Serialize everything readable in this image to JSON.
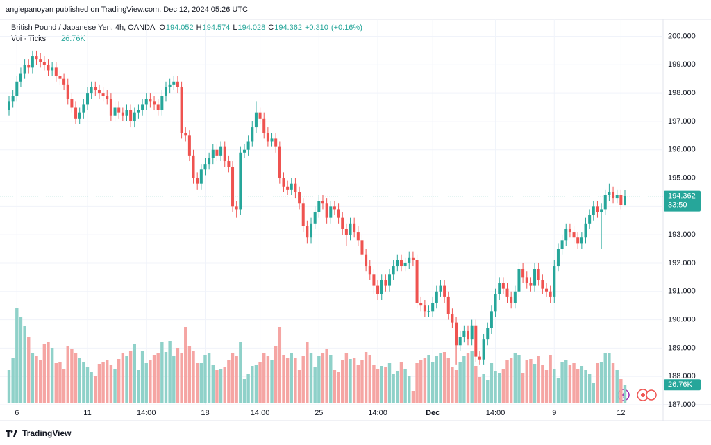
{
  "header": {
    "publisher": "angiepanoyan published on TradingView.com, Dec 12, 2024 05:26 UTC"
  },
  "footer": {
    "brand": "TradingView"
  },
  "chart_data": {
    "type": "candlestick",
    "title": "British Pound / Japanese Yen, 4h, OANDA",
    "ohlc_letters": {
      "open": "O",
      "high": "H",
      "low": "L",
      "close": "C"
    },
    "change_label": "+0.310",
    "change_pct_label": "(+0.16%)",
    "volume_title": "Vol · Ticks",
    "volume_label": "26.76K",
    "countdown": "33:50",
    "up_color": "#26a69a",
    "down_color": "#ef5350",
    "volume_up_color": "#8fd1c9",
    "volume_down_color": "#f5a5a3",
    "grid": true,
    "ylim": [
      187,
      200.6
    ],
    "yticks": [
      {
        "value": 187,
        "label": "187.000"
      },
      {
        "value": 188,
        "label": "188.000"
      },
      {
        "value": 189,
        "label": "189.000"
      },
      {
        "value": 190,
        "label": "190.000"
      },
      {
        "value": 191,
        "label": "191.000"
      },
      {
        "value": 192,
        "label": "192.000"
      },
      {
        "value": 193,
        "label": "193.000"
      },
      {
        "value": 194,
        "label": "194.000"
      },
      {
        "value": 195,
        "label": "195.000"
      },
      {
        "value": 196,
        "label": "196.000"
      },
      {
        "value": 197,
        "label": "197.000"
      },
      {
        "value": 198,
        "label": "198.000"
      },
      {
        "value": 199,
        "label": "199.000"
      },
      {
        "value": 200,
        "label": "200.000"
      }
    ],
    "volume_ylim": [
      0,
      140000
    ],
    "categories": [
      null,
      null,
      "6",
      null,
      null,
      null,
      null,
      null,
      null,
      null,
      null,
      null,
      null,
      null,
      null,
      null,
      null,
      null,
      null,
      null,
      "11",
      null,
      null,
      null,
      null,
      null,
      null,
      null,
      null,
      null,
      null,
      null,
      null,
      null,
      null,
      "14:00",
      null,
      null,
      null,
      null,
      null,
      null,
      null,
      null,
      null,
      null,
      null,
      null,
      null,
      null,
      "18",
      null,
      null,
      null,
      null,
      null,
      null,
      null,
      null,
      null,
      null,
      null,
      null,
      null,
      "14:00",
      null,
      null,
      null,
      null,
      null,
      null,
      null,
      null,
      null,
      null,
      null,
      null,
      null,
      null,
      "25",
      null,
      null,
      null,
      null,
      null,
      null,
      null,
      null,
      null,
      null,
      null,
      null,
      null,
      null,
      "14:00",
      null,
      null,
      null,
      null,
      null,
      null,
      null,
      null,
      null,
      null,
      null,
      null,
      null,
      "Dec",
      null,
      null,
      null,
      null,
      null,
      null,
      null,
      null,
      null,
      null,
      null,
      null,
      null,
      null,
      null,
      "14:00",
      null,
      null,
      null,
      null,
      null,
      null,
      null,
      null,
      null,
      null,
      null,
      null,
      null,
      null,
      "9",
      null,
      null,
      null,
      null,
      null,
      null,
      null,
      null,
      null,
      null,
      null,
      null,
      null,
      null,
      null,
      null,
      "12",
      null
    ],
    "open": [
      197.4,
      197.7,
      197.9,
      198.4,
      198.7,
      199.0,
      198.9,
      199.3,
      199.2,
      199.1,
      199.0,
      198.8,
      198.9,
      198.6,
      198.5,
      198.3,
      197.8,
      197.5,
      197.1,
      197.3,
      197.6,
      198.0,
      198.2,
      198.1,
      198.0,
      197.9,
      197.8,
      197.2,
      197.5,
      197.3,
      197.2,
      197.4,
      197.0,
      197.3,
      197.4,
      197.6,
      197.8,
      197.7,
      197.6,
      197.4,
      197.9,
      198.2,
      198.3,
      198.4,
      198.2,
      196.6,
      196.5,
      195.8,
      195.0,
      194.8,
      195.3,
      195.5,
      195.7,
      196.0,
      195.8,
      196.1,
      195.6,
      195.4,
      194.0,
      193.9,
      195.9,
      196.0,
      196.3,
      196.8,
      197.3,
      197.1,
      196.6,
      196.3,
      196.4,
      196.1,
      195.0,
      194.7,
      194.6,
      194.8,
      194.5,
      194.1,
      193.3,
      192.9,
      193.4,
      193.8,
      194.2,
      194.1,
      193.6,
      194.0,
      193.9,
      193.6,
      193.2,
      193.0,
      193.4,
      193.1,
      192.8,
      192.3,
      191.9,
      191.6,
      191.2,
      190.9,
      191.4,
      191.2,
      191.6,
      191.9,
      192.1,
      191.9,
      192.0,
      192.2,
      192.1,
      190.6,
      190.5,
      190.3,
      190.3,
      190.6,
      191.0,
      191.2,
      190.8,
      190.2,
      189.9,
      189.1,
      189.4,
      189.6,
      189.3,
      189.8,
      188.7,
      188.6,
      189.3,
      189.7,
      190.3,
      190.9,
      191.3,
      191.1,
      190.8,
      190.6,
      191.0,
      191.8,
      191.5,
      191.3,
      191.2,
      191.8,
      191.4,
      191.1,
      191.0,
      190.8,
      191.9,
      192.5,
      192.8,
      193.2,
      193.1,
      192.9,
      192.7,
      192.9,
      193.4,
      193.7,
      194.0,
      193.8,
      193.9,
      194.4,
      194.5,
      194.3,
      194.4,
      194.052
    ],
    "high": [
      197.9,
      198.1,
      198.6,
      198.9,
      199.2,
      199.2,
      199.5,
      199.5,
      199.4,
      199.3,
      199.2,
      199.1,
      199.1,
      198.8,
      198.7,
      198.5,
      198.0,
      197.7,
      197.5,
      197.8,
      198.2,
      198.4,
      198.4,
      198.3,
      198.2,
      198.1,
      198.0,
      197.7,
      197.7,
      197.5,
      197.6,
      197.6,
      197.5,
      197.6,
      197.8,
      198.0,
      198.0,
      197.9,
      197.8,
      198.1,
      198.4,
      198.5,
      198.6,
      198.6,
      198.4,
      196.8,
      196.7,
      196.0,
      195.2,
      195.5,
      195.7,
      195.9,
      196.2,
      196.2,
      196.3,
      196.3,
      195.8,
      195.6,
      194.2,
      196.1,
      196.2,
      196.5,
      197.0,
      197.7,
      197.5,
      197.3,
      196.8,
      196.6,
      196.6,
      196.3,
      195.2,
      194.9,
      195.0,
      195.0,
      194.7,
      194.3,
      193.5,
      193.6,
      194.0,
      194.4,
      194.4,
      194.3,
      194.2,
      194.2,
      194.1,
      193.8,
      193.4,
      193.6,
      193.6,
      193.3,
      193.0,
      192.5,
      192.1,
      191.8,
      191.4,
      191.6,
      191.6,
      191.8,
      192.1,
      192.3,
      192.3,
      192.2,
      192.4,
      192.4,
      192.3,
      190.8,
      190.7,
      190.5,
      190.8,
      191.2,
      191.4,
      191.4,
      191.0,
      190.4,
      190.1,
      189.6,
      189.8,
      189.8,
      190.0,
      190.0,
      188.9,
      189.5,
      189.9,
      190.5,
      191.1,
      191.5,
      191.5,
      191.3,
      191.0,
      191.2,
      192.0,
      192.0,
      191.7,
      191.5,
      192.0,
      192.0,
      191.6,
      191.3,
      191.2,
      192.1,
      192.7,
      193.0,
      193.4,
      193.4,
      193.3,
      193.1,
      193.1,
      193.6,
      193.9,
      194.2,
      194.2,
      194.1,
      194.6,
      194.8,
      194.7,
      194.6,
      194.6,
      194.574
    ],
    "low": [
      197.2,
      197.5,
      197.7,
      198.2,
      198.5,
      198.7,
      198.7,
      199.0,
      198.9,
      198.8,
      198.6,
      198.6,
      198.4,
      198.3,
      198.1,
      197.6,
      197.3,
      196.9,
      196.9,
      197.1,
      197.4,
      197.8,
      197.9,
      197.8,
      197.7,
      197.6,
      197.0,
      197.0,
      197.1,
      197.0,
      197.0,
      196.8,
      196.8,
      197.1,
      197.2,
      197.4,
      197.5,
      197.4,
      197.2,
      197.2,
      197.7,
      198.0,
      198.1,
      198.0,
      196.4,
      196.3,
      195.6,
      194.8,
      194.6,
      194.6,
      195.1,
      195.3,
      195.5,
      195.6,
      195.6,
      195.4,
      195.2,
      193.8,
      193.6,
      193.7,
      195.7,
      195.8,
      196.1,
      196.6,
      196.9,
      196.4,
      196.1,
      196.1,
      195.9,
      194.8,
      194.5,
      194.4,
      194.4,
      194.3,
      193.9,
      193.1,
      192.7,
      192.7,
      193.2,
      193.6,
      193.9,
      193.4,
      193.4,
      193.7,
      193.4,
      193.0,
      192.6,
      192.8,
      192.9,
      192.6,
      192.1,
      191.7,
      191.4,
      190.9,
      190.7,
      190.7,
      191.0,
      191.0,
      191.4,
      191.7,
      191.7,
      191.7,
      191.8,
      191.9,
      190.4,
      190.3,
      190.1,
      190.1,
      190.1,
      190.4,
      190.8,
      190.6,
      190.0,
      189.7,
      188.4,
      188.9,
      189.2,
      189.1,
      189.1,
      188.5,
      188.4,
      188.4,
      189.1,
      189.5,
      190.1,
      190.7,
      190.9,
      190.6,
      190.4,
      190.4,
      190.8,
      191.3,
      191.1,
      191.0,
      191.0,
      191.2,
      190.9,
      190.8,
      190.6,
      190.6,
      191.7,
      192.3,
      192.6,
      192.9,
      192.7,
      192.5,
      192.5,
      192.7,
      193.2,
      193.5,
      193.6,
      192.5,
      193.7,
      194.2,
      194.1,
      194.1,
      193.9,
      194.028
    ],
    "close": [
      197.7,
      197.9,
      198.4,
      198.7,
      199.0,
      198.9,
      199.3,
      199.2,
      199.1,
      199.0,
      198.8,
      198.9,
      198.6,
      198.5,
      198.3,
      197.8,
      197.5,
      197.1,
      197.3,
      197.6,
      198.0,
      198.2,
      198.1,
      198.0,
      197.9,
      197.8,
      197.2,
      197.5,
      197.3,
      197.2,
      197.4,
      197.0,
      197.3,
      197.4,
      197.6,
      197.8,
      197.7,
      197.6,
      197.4,
      197.9,
      198.2,
      198.3,
      198.4,
      198.2,
      196.6,
      196.5,
      195.8,
      195.0,
      194.8,
      195.3,
      195.5,
      195.7,
      196.0,
      195.8,
      196.1,
      195.6,
      195.4,
      194.0,
      193.9,
      195.9,
      196.0,
      196.3,
      196.8,
      197.3,
      197.1,
      196.6,
      196.3,
      196.4,
      196.1,
      195.0,
      194.7,
      194.6,
      194.8,
      194.5,
      194.1,
      193.3,
      192.9,
      193.4,
      193.8,
      194.2,
      194.1,
      193.6,
      194.0,
      193.9,
      193.6,
      193.2,
      193.0,
      193.4,
      193.1,
      192.8,
      192.3,
      191.9,
      191.6,
      191.2,
      190.9,
      191.4,
      191.2,
      191.6,
      191.9,
      192.1,
      191.9,
      192.0,
      192.2,
      192.1,
      190.6,
      190.5,
      190.3,
      190.3,
      190.6,
      191.0,
      191.2,
      190.8,
      190.2,
      189.9,
      189.1,
      189.4,
      189.6,
      189.3,
      189.8,
      188.7,
      188.6,
      189.3,
      189.7,
      190.3,
      190.9,
      191.3,
      191.1,
      190.8,
      190.6,
      191.0,
      191.8,
      191.5,
      191.3,
      191.2,
      191.8,
      191.4,
      191.1,
      191.0,
      190.8,
      191.9,
      192.5,
      192.8,
      193.2,
      193.1,
      192.9,
      192.7,
      192.9,
      193.4,
      193.7,
      194.0,
      193.8,
      193.9,
      194.4,
      194.5,
      194.3,
      194.4,
      194.052,
      194.362
    ],
    "volume": [
      48000,
      65000,
      138000,
      125000,
      112000,
      95000,
      72000,
      68000,
      62000,
      85000,
      88000,
      80000,
      58000,
      60000,
      50000,
      82000,
      78000,
      72000,
      65000,
      60000,
      52000,
      45000,
      40000,
      56000,
      60000,
      62000,
      55000,
      50000,
      64000,
      72000,
      68000,
      76000,
      85000,
      48000,
      75000,
      58000,
      62000,
      70000,
      72000,
      88000,
      74000,
      90000,
      68000,
      80000,
      72000,
      110000,
      82000,
      75000,
      58000,
      58000,
      70000,
      72000,
      55000,
      48000,
      50000,
      52000,
      62000,
      72000,
      68000,
      88000,
      35000,
      42000,
      54000,
      55000,
      60000,
      72000,
      68000,
      62000,
      82000,
      110000,
      70000,
      65000,
      72000,
      66000,
      48000,
      68000,
      88000,
      72000,
      52000,
      68000,
      72000,
      78000,
      70000,
      48000,
      45000,
      62000,
      72000,
      64000,
      65000,
      55000,
      62000,
      74000,
      70000,
      55000,
      50000,
      54000,
      52000,
      58000,
      42000,
      46000,
      60000,
      50000,
      40000,
      18000,
      58000,
      62000,
      66000,
      70000,
      60000,
      68000,
      72000,
      74000,
      66000,
      52000,
      48000,
      60000,
      68000,
      72000,
      75000,
      54000,
      38000,
      42000,
      34000,
      58000,
      46000,
      44000,
      50000,
      62000,
      66000,
      72000,
      70000,
      44000,
      62000,
      64000,
      56000,
      68000,
      55000,
      48000,
      70000,
      50000,
      36000,
      60000,
      62000,
      55000,
      58000,
      50000,
      54000,
      48000,
      42000,
      30000,
      58000,
      60000,
      72000,
      73000,
      58000,
      48000,
      35000,
      26760
    ]
  }
}
